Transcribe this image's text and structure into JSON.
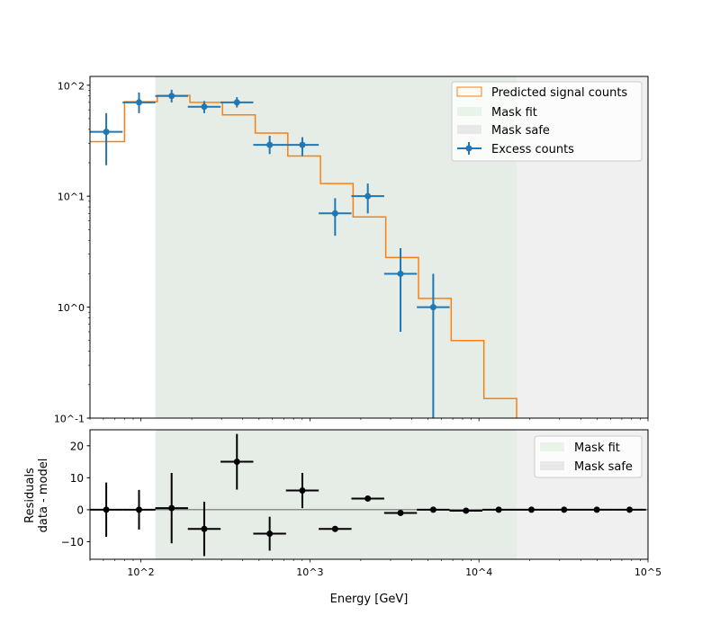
{
  "chart_data": [
    {
      "type": "step+errorbar",
      "xscale": "log",
      "yscale": "log",
      "xlim": [
        50,
        100000
      ],
      "ylim": [
        0.1,
        120
      ],
      "ylabel": "",
      "ytick_labels": [
        "10^-1",
        "10^0",
        "10^1",
        "10^2"
      ],
      "ytick_values": [
        0.1,
        1,
        10,
        100
      ],
      "legend": {
        "placement": "top-right",
        "entries": [
          "Predicted signal counts",
          "Mask fit",
          "Mask safe",
          "Excess counts"
        ]
      },
      "mask_fit": [
        122,
        16700
      ],
      "mask_safe": [
        122,
        100000
      ],
      "predicted": {
        "name": "Predicted signal counts",
        "edges": [
          50,
          80,
          125,
          195,
          304,
          475,
          740,
          1155,
          1800,
          2810,
          4390,
          6850,
          10700,
          16700
        ],
        "values": [
          31,
          71,
          81,
          70,
          54,
          37,
          23,
          13,
          6.5,
          2.8,
          1.2,
          0.5,
          0.15
        ]
      },
      "excess": {
        "name": "Excess counts",
        "x": [
          62.4,
          97.5,
          152,
          237,
          370,
          578,
          902,
          1409,
          2200,
          3436,
          5365
        ],
        "y": [
          38,
          70,
          80,
          64,
          70,
          29,
          29,
          7,
          10,
          2,
          1
        ],
        "ylow": [
          19,
          56,
          70,
          56,
          63,
          24,
          23,
          4.4,
          7,
          0.6,
          0.05
        ],
        "yhigh": [
          56,
          86,
          91,
          72,
          78,
          35,
          34,
          9.6,
          13,
          3.4,
          2
        ]
      }
    },
    {
      "type": "errorbar",
      "xscale": "log",
      "xlim": [
        50,
        100000
      ],
      "ylim": [
        -15.5,
        25
      ],
      "xlabel": "Energy [GeV]",
      "ylabel_line1": "Residuals",
      "ylabel_line2": "data - model",
      "xtick_labels": [
        "10^2",
        "10^3",
        "10^4",
        "10^5"
      ],
      "xtick_values": [
        100,
        1000,
        10000,
        100000
      ],
      "ytick_labels": [
        "−10",
        "0",
        "10",
        "20"
      ],
      "ytick_values": [
        -10,
        0,
        10,
        20
      ],
      "legend": {
        "placement": "top-right",
        "entries": [
          "Mask fit",
          "Mask safe"
        ]
      },
      "x": [
        62.4,
        97.5,
        152,
        237,
        370,
        578,
        902,
        1409,
        2200,
        3436,
        5365,
        8380,
        13090,
        20440,
        31900,
        49800,
        77800
      ],
      "y": [
        0,
        0,
        0.5,
        -6,
        15,
        -7.5,
        6,
        -6,
        3.5,
        -1,
        0,
        -0.3,
        0,
        0,
        0,
        0,
        0
      ],
      "yerr": [
        8.5,
        6.2,
        11,
        8.5,
        8.7,
        5.3,
        5.5,
        0.4,
        0.5,
        0.4,
        0.2,
        0.2,
        0,
        0,
        0,
        0,
        0
      ]
    }
  ],
  "colors": {
    "excess": "#1f77b4",
    "predicted": "#ff7f0e",
    "mask_fit": "#e5ede6",
    "mask_safe": "#f0f0f0",
    "residual": "#000000"
  }
}
